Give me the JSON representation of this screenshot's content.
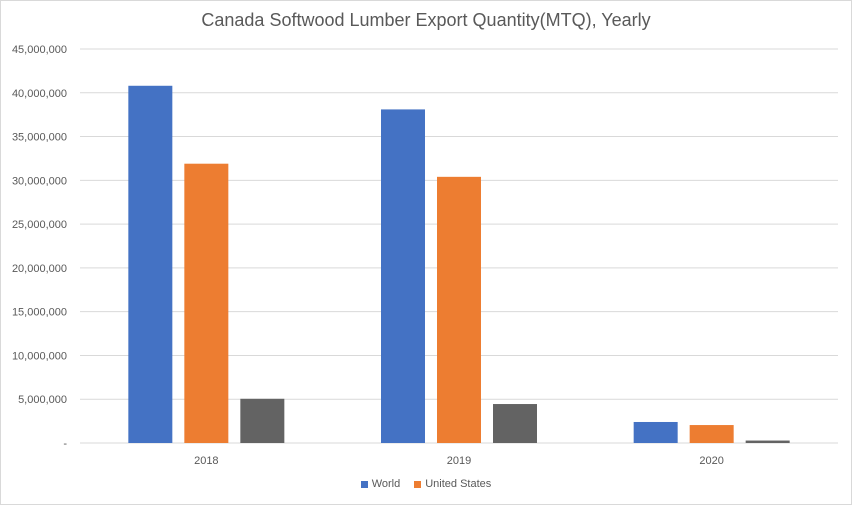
{
  "chart_data": {
    "type": "bar",
    "title": "Canada Softwood Lumber Export Quantity(MTQ), Yearly",
    "categories": [
      "2018",
      "2019",
      "2020"
    ],
    "series": [
      {
        "name": "World",
        "color": "#4472C4",
        "values": [
          40800000,
          38100000,
          2400000
        ]
      },
      {
        "name": "United States",
        "color": "#ED7D31",
        "values": [
          31900000,
          30400000,
          2050000
        ]
      },
      {
        "name": "",
        "color": "#636363",
        "values": [
          5050000,
          4450000,
          280000
        ]
      }
    ],
    "ylim": [
      0,
      45000000
    ],
    "yticks": [
      0,
      5000000,
      10000000,
      15000000,
      20000000,
      25000000,
      30000000,
      35000000,
      40000000,
      45000000
    ],
    "ytick_labels": [
      "-",
      "5,000,000",
      "10,000,000",
      "15,000,000",
      "20,000,000",
      "25,000,000",
      "30,000,000",
      "35,000,000",
      "40,000,000",
      "45,000,000"
    ],
    "grid": true,
    "legend_position": "bottom",
    "legend_entries": [
      "World",
      "United States"
    ]
  }
}
